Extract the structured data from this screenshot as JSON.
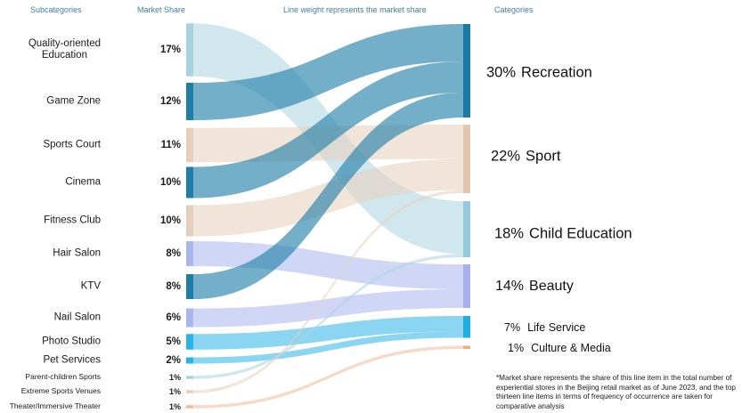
{
  "headers": {
    "subcategories": "Subcategories",
    "market_share": "Market Share",
    "line_weight": "Line weight represents the market share",
    "categories": "Categories"
  },
  "footnote": "*Market share represents the share of this line item in the total number of experiential stores in the Beijing retail market as of June 2023, and the top thirteen line items in terms of frequency of occurrence are taken for comparative analysis",
  "chart_data": {
    "type": "sankey",
    "title": "Line weight represents the market share",
    "sources": [
      {
        "name": "Quality-oriented Education",
        "label_lines": [
          "Quality-oriented",
          "Education"
        ],
        "share_label": "17%",
        "value": 17,
        "target": "Child Education",
        "color": "#a9d3e0"
      },
      {
        "name": "Game Zone",
        "share_label": "12%",
        "value": 12,
        "target": "Recreation",
        "color": "#1f7ea8"
      },
      {
        "name": "Sports Court",
        "share_label": "11%",
        "value": 11,
        "target": "Sport",
        "color": "#e5cfbb"
      },
      {
        "name": "Cinema",
        "share_label": "10%",
        "value": 10,
        "target": "Recreation",
        "color": "#1f7ea8"
      },
      {
        "name": "Fitness Club",
        "share_label": "10%",
        "value": 10,
        "target": "Sport",
        "color": "#e5cfbb"
      },
      {
        "name": "Hair Salon",
        "share_label": "8%",
        "value": 8,
        "target": "Beauty",
        "color": "#a9b7ee"
      },
      {
        "name": "KTV",
        "share_label": "8%",
        "value": 8,
        "target": "Recreation",
        "color": "#1f7ea8"
      },
      {
        "name": "Nail Salon",
        "share_label": "6%",
        "value": 6,
        "target": "Beauty",
        "color": "#a9b7ee"
      },
      {
        "name": "Photo Studio",
        "share_label": "5%",
        "value": 5,
        "target": "Life Service",
        "color": "#29b3e6"
      },
      {
        "name": "Pet Services",
        "share_label": "2%",
        "value": 2,
        "target": "Life Service",
        "color": "#29b3e6"
      },
      {
        "name": "Parent-children Sports",
        "share_label": "1%",
        "value": 1,
        "target": "Child Education",
        "color": "#a9d3e0"
      },
      {
        "name": "Extreme Sports Venues",
        "share_label": "1%",
        "value": 1,
        "target": "Sport",
        "color": "#e5cfbb"
      },
      {
        "name": "Theater/Immersive Theater",
        "share_label": "1%",
        "value": 1,
        "target": "Culture & Media",
        "color": "#f2b99a"
      }
    ],
    "targets": [
      {
        "name": "Recreation",
        "share_label": "30%",
        "value": 30,
        "color": "#1a7aa6"
      },
      {
        "name": "Sport",
        "share_label": "22%",
        "value": 22,
        "color": "#e2c6ad"
      },
      {
        "name": "Child Education",
        "share_label": "18%",
        "value": 18,
        "color": "#93c9da"
      },
      {
        "name": "Beauty",
        "share_label": "14%",
        "value": 14,
        "color": "#a3b1ed"
      },
      {
        "name": "Life Service",
        "share_label": "7%",
        "value": 7,
        "color": "#1eaee6"
      },
      {
        "name": "Culture & Media",
        "share_label": "1%",
        "value": 1,
        "color": "#f0ab86"
      }
    ]
  }
}
